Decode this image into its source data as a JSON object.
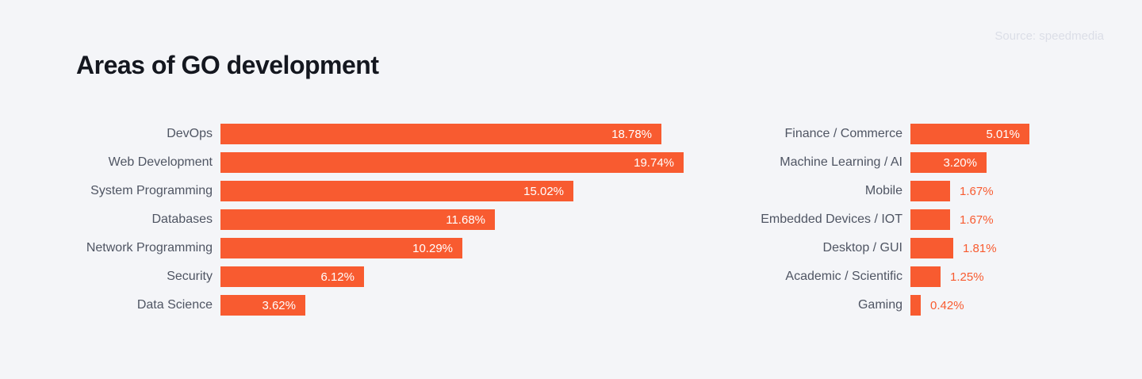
{
  "title": "Areas of GO development",
  "source_label": "Source: speedmedia",
  "colors": {
    "background": "#F4F5F8",
    "bar": "#F85B30",
    "label": "#4F5563",
    "title": "#14171F",
    "source": "#DBDEE7",
    "value_inside": "#FFFFFF",
    "value_outside": "#F85B30"
  },
  "chart_data": [
    {
      "type": "bar",
      "orientation": "horizontal",
      "title": "Areas of GO development (left panel)",
      "grid": false,
      "axes": "none",
      "legend": "none",
      "value_unit": "%",
      "categories": [
        "DevOps",
        "Web Development",
        "System Programming",
        "Databases",
        "Network Programming",
        "Security",
        "Data Science"
      ],
      "values": [
        18.78,
        19.74,
        15.02,
        11.68,
        10.29,
        6.12,
        3.62
      ],
      "value_labels": [
        "18.78%",
        "19.74%",
        "15.02%",
        "11.68%",
        "10.29%",
        "6.12%",
        "3.62%"
      ]
    },
    {
      "type": "bar",
      "orientation": "horizontal",
      "title": "Areas of GO development (right panel)",
      "grid": false,
      "axes": "none",
      "legend": "none",
      "value_unit": "%",
      "categories": [
        "Finance / Commerce",
        "Machine Learning / AI",
        "Mobile",
        "Embedded Devices / IOT",
        "Desktop / GUI",
        "Academic / Scientific",
        "Gaming"
      ],
      "values": [
        5.01,
        3.2,
        1.67,
        1.67,
        1.81,
        1.25,
        0.42
      ],
      "value_labels": [
        "5.01%",
        "3.20%",
        "1.67%",
        "1.67%",
        "1.81%",
        "1.25%",
        "0.42%"
      ]
    }
  ]
}
